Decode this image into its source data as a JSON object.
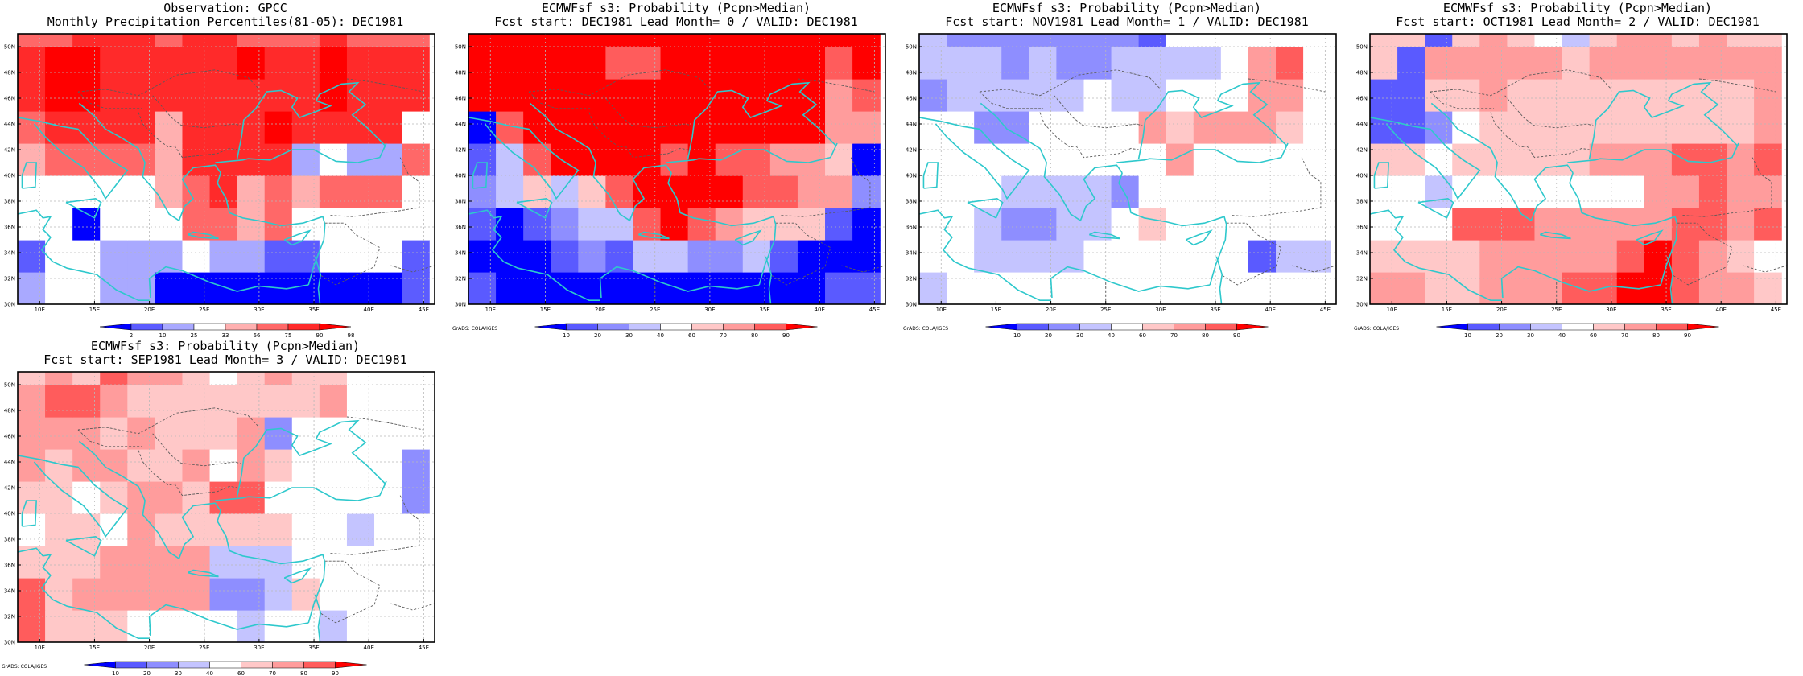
{
  "colors": {
    "coast": "#2ec8cc",
    "border": "#5a5a5a",
    "grid": "#b8b8b8",
    "frame": "#000000",
    "obs_scale": [
      "#0000ff",
      "#5c5cff",
      "#a9a9ff",
      "#ffffff",
      "#ffb0b0",
      "#ff6868",
      "#ff2a2a",
      "#ff0000"
    ],
    "prob_scale": [
      "#0000ff",
      "#5a5aff",
      "#8e8eff",
      "#c4c4ff",
      "#ffffff",
      "#ffc8c8",
      "#ff9c9c",
      "#ff5c5c",
      "#ff0000"
    ]
  },
  "panel_row_1": [
    0,
    1,
    2,
    3
  ],
  "panel_row_2": [
    4
  ],
  "chart_data": [
    {
      "type": "heatmap",
      "title_line1": "Observation: GPCC",
      "title_line2": "Monthly Precipitation Percentiles(81-05): DEC1981",
      "credit": "",
      "xlim": [
        8,
        46
      ],
      "ylim": [
        30,
        51
      ],
      "x_ticks": [
        "10E",
        "15E",
        "20E",
        "25E",
        "30E",
        "35E",
        "40E",
        "45E"
      ],
      "y_ticks": [
        "30N",
        "32N",
        "34N",
        "36N",
        "38N",
        "40N",
        "42N",
        "44N",
        "46N",
        "48N",
        "50N"
      ],
      "colorbar": {
        "breaks": [
          "2",
          "10",
          "25",
          "33",
          "66",
          "75",
          "90",
          "98"
        ]
      },
      "grid_origin": [
        8,
        30
      ],
      "cell_size": [
        2.5,
        2.5
      ],
      "rows": [
        [
          2,
          3,
          3,
          2,
          2,
          0,
          0,
          0,
          0,
          0,
          0,
          0,
          0,
          0,
          1
        ],
        [
          1,
          3,
          3,
          2,
          2,
          2,
          3,
          2,
          2,
          1,
          1,
          3,
          3,
          3,
          1
        ],
        [
          3,
          3,
          0,
          3,
          3,
          3,
          5,
          5,
          4,
          5,
          3,
          3,
          3,
          3,
          3
        ],
        [
          3,
          3,
          3,
          3,
          3,
          4,
          5,
          6,
          4,
          5,
          4,
          5,
          5,
          5,
          3
        ],
        [
          4,
          5,
          5,
          5,
          5,
          4,
          6,
          6,
          6,
          6,
          2,
          3,
          2,
          2,
          5
        ],
        [
          5,
          6,
          6,
          6,
          6,
          4,
          6,
          6,
          6,
          7,
          6,
          6,
          6,
          6,
          3
        ],
        [
          6,
          7,
          7,
          6,
          6,
          6,
          6,
          6,
          6,
          6,
          6,
          7,
          6,
          6,
          6
        ],
        [
          6,
          7,
          7,
          6,
          6,
          6,
          6,
          6,
          7,
          6,
          6,
          7,
          6,
          6,
          6
        ],
        [
          5,
          5,
          6,
          6,
          6,
          5,
          6,
          6,
          5,
          5,
          5,
          6,
          5,
          5,
          5
        ]
      ]
    },
    {
      "type": "heatmap",
      "title_line1": "ECMWFsf s3: Probability (Pcpn>Median)",
      "title_line2": "Fcst start: DEC1981  Lead Month= 0 / VALID: DEC1981",
      "credit": "GrADS: COLA/IGES",
      "xlim": [
        8,
        46
      ],
      "ylim": [
        30,
        51
      ],
      "x_ticks": [
        "10E",
        "15E",
        "20E",
        "25E",
        "30E",
        "35E",
        "40E",
        "45E"
      ],
      "y_ticks": [
        "30N",
        "32N",
        "34N",
        "36N",
        "38N",
        "40N",
        "42N",
        "44N",
        "46N",
        "48N",
        "50N"
      ],
      "colorbar": {
        "breaks": [
          "10",
          "20",
          "30",
          "40",
          "60",
          "70",
          "80",
          "90"
        ]
      },
      "grid_origin": [
        8,
        30
      ],
      "cell_size": [
        2.5,
        2.5
      ],
      "rows": [
        [
          1,
          0,
          0,
          0,
          0,
          0,
          0,
          0,
          0,
          0,
          0,
          0,
          0,
          1,
          1
        ],
        [
          0,
          0,
          0,
          1,
          2,
          1,
          3,
          3,
          2,
          2,
          3,
          1,
          0,
          0,
          0
        ],
        [
          1,
          0,
          1,
          2,
          3,
          3,
          7,
          8,
          7,
          6,
          5,
          5,
          5,
          1,
          0
        ],
        [
          2,
          3,
          5,
          3,
          5,
          7,
          8,
          8,
          8,
          8,
          7,
          7,
          6,
          6,
          2
        ],
        [
          1,
          3,
          7,
          8,
          8,
          8,
          8,
          7,
          8,
          7,
          7,
          6,
          6,
          5,
          0
        ],
        [
          0,
          7,
          8,
          8,
          8,
          8,
          8,
          8,
          8,
          8,
          8,
          8,
          8,
          6,
          6
        ],
        [
          8,
          8,
          8,
          8,
          8,
          8,
          8,
          8,
          8,
          8,
          8,
          8,
          8,
          6,
          7
        ],
        [
          8,
          8,
          8,
          8,
          8,
          7,
          7,
          8,
          8,
          8,
          8,
          8,
          8,
          7,
          8
        ],
        [
          8,
          8,
          8,
          8,
          8,
          8,
          8,
          8,
          8,
          8,
          8,
          8,
          8,
          8,
          8
        ]
      ]
    },
    {
      "type": "heatmap",
      "title_line1": "ECMWFsf s3: Probability (Pcpn>Median)",
      "title_line2": "Fcst start: NOV1981  Lead Month= 1 / VALID: DEC1981",
      "credit": "GrADS: COLA/IGES",
      "xlim": [
        8,
        46
      ],
      "ylim": [
        30,
        51
      ],
      "x_ticks": [
        "10E",
        "15E",
        "20E",
        "25E",
        "30E",
        "35E",
        "40E",
        "45E"
      ],
      "y_ticks": [
        "30N",
        "32N",
        "34N",
        "36N",
        "38N",
        "40N",
        "42N",
        "44N",
        "46N",
        "48N",
        "50N"
      ],
      "colorbar": {
        "breaks": [
          "10",
          "20",
          "30",
          "40",
          "60",
          "70",
          "80",
          "90"
        ]
      },
      "grid_origin": [
        8,
        30
      ],
      "cell_size": [
        2.5,
        2.5
      ],
      "rows": [
        [
          3,
          4,
          4,
          4,
          4,
          4,
          4,
          4,
          4,
          4,
          4,
          4,
          4,
          4,
          4
        ],
        [
          4,
          4,
          3,
          3,
          3,
          3,
          4,
          4,
          4,
          4,
          4,
          4,
          1,
          3,
          3
        ],
        [
          4,
          4,
          3,
          2,
          2,
          3,
          3,
          4,
          5,
          4,
          4,
          4,
          4,
          4,
          4
        ],
        [
          4,
          4,
          4,
          3,
          3,
          3,
          3,
          2,
          4,
          4,
          4,
          4,
          4,
          4,
          4
        ],
        [
          4,
          4,
          4,
          4,
          4,
          4,
          4,
          4,
          4,
          6,
          4,
          4,
          4,
          4,
          4
        ],
        [
          4,
          4,
          2,
          2,
          4,
          4,
          4,
          4,
          6,
          5,
          6,
          6,
          6,
          5,
          4
        ],
        [
          2,
          3,
          3,
          3,
          3,
          3,
          4,
          3,
          3,
          4,
          4,
          4,
          6,
          6,
          4
        ],
        [
          3,
          3,
          3,
          2,
          3,
          2,
          2,
          3,
          3,
          3,
          3,
          4,
          6,
          7,
          4
        ],
        [
          3,
          2,
          2,
          2,
          2,
          2,
          2,
          2,
          1,
          4,
          4,
          4,
          4,
          4,
          4
        ]
      ]
    },
    {
      "type": "heatmap",
      "title_line1": "ECMWFsf s3: Probability (Pcpn>Median)",
      "title_line2": "Fcst start: OCT1981  Lead Month= 2 / VALID: DEC1981",
      "credit": "GrADS: COLA/IGES",
      "xlim": [
        8,
        46
      ],
      "ylim": [
        30,
        51
      ],
      "x_ticks": [
        "10E",
        "15E",
        "20E",
        "25E",
        "30E",
        "35E",
        "40E",
        "45E"
      ],
      "y_ticks": [
        "30N",
        "32N",
        "34N",
        "36N",
        "38N",
        "40N",
        "42N",
        "44N",
        "46N",
        "48N",
        "50N"
      ],
      "colorbar": {
        "breaks": [
          "10",
          "20",
          "30",
          "40",
          "60",
          "70",
          "80",
          "90"
        ]
      },
      "grid_origin": [
        8,
        30
      ],
      "cell_size": [
        2.5,
        2.5
      ],
      "rows": [
        [
          6,
          6,
          5,
          5,
          6,
          6,
          6,
          7,
          7,
          8,
          8,
          7,
          6,
          6,
          5
        ],
        [
          5,
          5,
          5,
          5,
          6,
          6,
          6,
          6,
          6,
          7,
          8,
          7,
          6,
          5,
          4
        ],
        [
          4,
          4,
          4,
          7,
          7,
          7,
          6,
          6,
          6,
          6,
          6,
          7,
          7,
          6,
          7
        ],
        [
          4,
          4,
          3,
          4,
          4,
          4,
          4,
          4,
          4,
          4,
          6,
          6,
          7,
          6,
          6
        ],
        [
          5,
          5,
          4,
          5,
          5,
          5,
          5,
          5,
          6,
          6,
          6,
          7,
          7,
          6,
          7
        ],
        [
          1,
          1,
          2,
          4,
          5,
          5,
          5,
          5,
          5,
          5,
          5,
          5,
          5,
          5,
          6
        ],
        [
          1,
          1,
          5,
          5,
          6,
          5,
          5,
          5,
          5,
          5,
          5,
          5,
          5,
          5,
          6
        ],
        [
          5,
          1,
          6,
          6,
          6,
          6,
          6,
          5,
          6,
          6,
          6,
          6,
          6,
          6,
          6
        ],
        [
          5,
          5,
          1,
          5,
          6,
          5,
          4,
          3,
          5,
          6,
          6,
          5,
          6,
          5,
          5
        ]
      ]
    },
    {
      "type": "heatmap",
      "title_line1": "ECMWFsf s3: Probability (Pcpn>Median)",
      "title_line2": "Fcst start: SEP1981  Lead Month= 3 / VALID: DEC1981",
      "credit": "GrADS: COLA/IGES",
      "xlim": [
        8,
        46
      ],
      "ylim": [
        30,
        51
      ],
      "x_ticks": [
        "10E",
        "15E",
        "20E",
        "25E",
        "30E",
        "35E",
        "40E",
        "45E"
      ],
      "y_ticks": [
        "30N",
        "32N",
        "34N",
        "36N",
        "38N",
        "40N",
        "42N",
        "44N",
        "46N",
        "48N",
        "50N"
      ],
      "colorbar": {
        "breaks": [
          "10",
          "20",
          "30",
          "40",
          "60",
          "70",
          "80",
          "90"
        ]
      },
      "grid_origin": [
        8,
        30
      ],
      "cell_size": [
        2.5,
        2.5
      ],
      "rows": [
        [
          7,
          5,
          5,
          5,
          4,
          4,
          4,
          4,
          3,
          4,
          4,
          3,
          4,
          4,
          4
        ],
        [
          7,
          5,
          6,
          6,
          6,
          6,
          6,
          2,
          2,
          3,
          5,
          4,
          4,
          4,
          4
        ],
        [
          5,
          5,
          5,
          6,
          6,
          6,
          6,
          3,
          3,
          3,
          4,
          4,
          4,
          4,
          4
        ],
        [
          4,
          5,
          5,
          4,
          6,
          5,
          5,
          5,
          5,
          5,
          4,
          4,
          3,
          4,
          4
        ],
        [
          5,
          5,
          4,
          5,
          6,
          6,
          5,
          7,
          7,
          4,
          4,
          4,
          4,
          4,
          2
        ],
        [
          6,
          5,
          6,
          6,
          5,
          5,
          6,
          4,
          6,
          5,
          4,
          4,
          4,
          4,
          2
        ],
        [
          6,
          6,
          6,
          5,
          6,
          5,
          5,
          5,
          6,
          2,
          4,
          4,
          4,
          4,
          4
        ],
        [
          6,
          7,
          7,
          6,
          5,
          5,
          5,
          5,
          5,
          5,
          5,
          6,
          4,
          4,
          4
        ],
        [
          5,
          6,
          5,
          7,
          6,
          6,
          5,
          4,
          5,
          6,
          5,
          5,
          4,
          4,
          4
        ]
      ]
    }
  ]
}
